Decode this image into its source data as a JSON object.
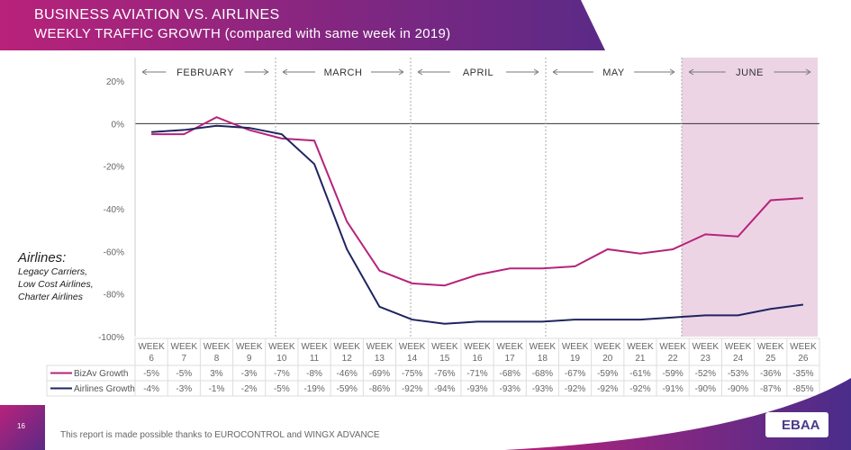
{
  "header": {
    "title": "BUSINESS AVIATION VS. AIRLINES",
    "subtitle": "WEEKLY TRAFFIC GROWTH (compared with same week in 2019)"
  },
  "side_note": {
    "title": "Airlines:",
    "lines": [
      "Legacy Carriers,",
      "Low Cost Airlines,",
      "Charter Airlines"
    ]
  },
  "footer": {
    "page": "16",
    "text": "This report is made possible thanks to EUROCONTROL and WINGX ADVANCE",
    "logo": "EBAA"
  },
  "colors": {
    "bizav": "#b5247c",
    "airlines": "#1f2460",
    "highlight": "#e6c6dc"
  },
  "chart_data": {
    "type": "line",
    "title": "WEEKLY TRAFFIC GROWTH (compared with same week in 2019)",
    "ylim": [
      -100,
      20
    ],
    "yticks": [
      20,
      0,
      -20,
      -40,
      -60,
      -80,
      -100
    ],
    "ytick_labels": [
      "20%",
      "0%",
      "-20%",
      "-40%",
      "-60%",
      "-80%",
      "-100%"
    ],
    "categories": [
      "6",
      "7",
      "8",
      "9",
      "10",
      "11",
      "12",
      "13",
      "14",
      "15",
      "16",
      "17",
      "18",
      "19",
      "20",
      "21",
      "22",
      "23",
      "24",
      "25",
      "26"
    ],
    "category_prefix": "WEEK",
    "months": [
      {
        "label": "FEBRUARY"
      },
      {
        "label": "MARCH"
      },
      {
        "label": "APRIL"
      },
      {
        "label": "MAY"
      },
      {
        "label": "JUNE",
        "highlighted": true
      }
    ],
    "series": [
      {
        "name": "BizAv Growth",
        "values": [
          -5,
          -5,
          3,
          -3,
          -7,
          -8,
          -46,
          -69,
          -75,
          -76,
          -71,
          -68,
          -68,
          -67,
          -59,
          -61,
          -59,
          -52,
          -53,
          -36,
          -35
        ]
      },
      {
        "name": "Airlines Growth",
        "values": [
          -4,
          -3,
          -1,
          -2,
          -5,
          -19,
          -59,
          -86,
          -92,
          -94,
          -93,
          -93,
          -93,
          -92,
          -92,
          -92,
          -91,
          -90,
          -90,
          -87,
          -85
        ]
      }
    ]
  }
}
